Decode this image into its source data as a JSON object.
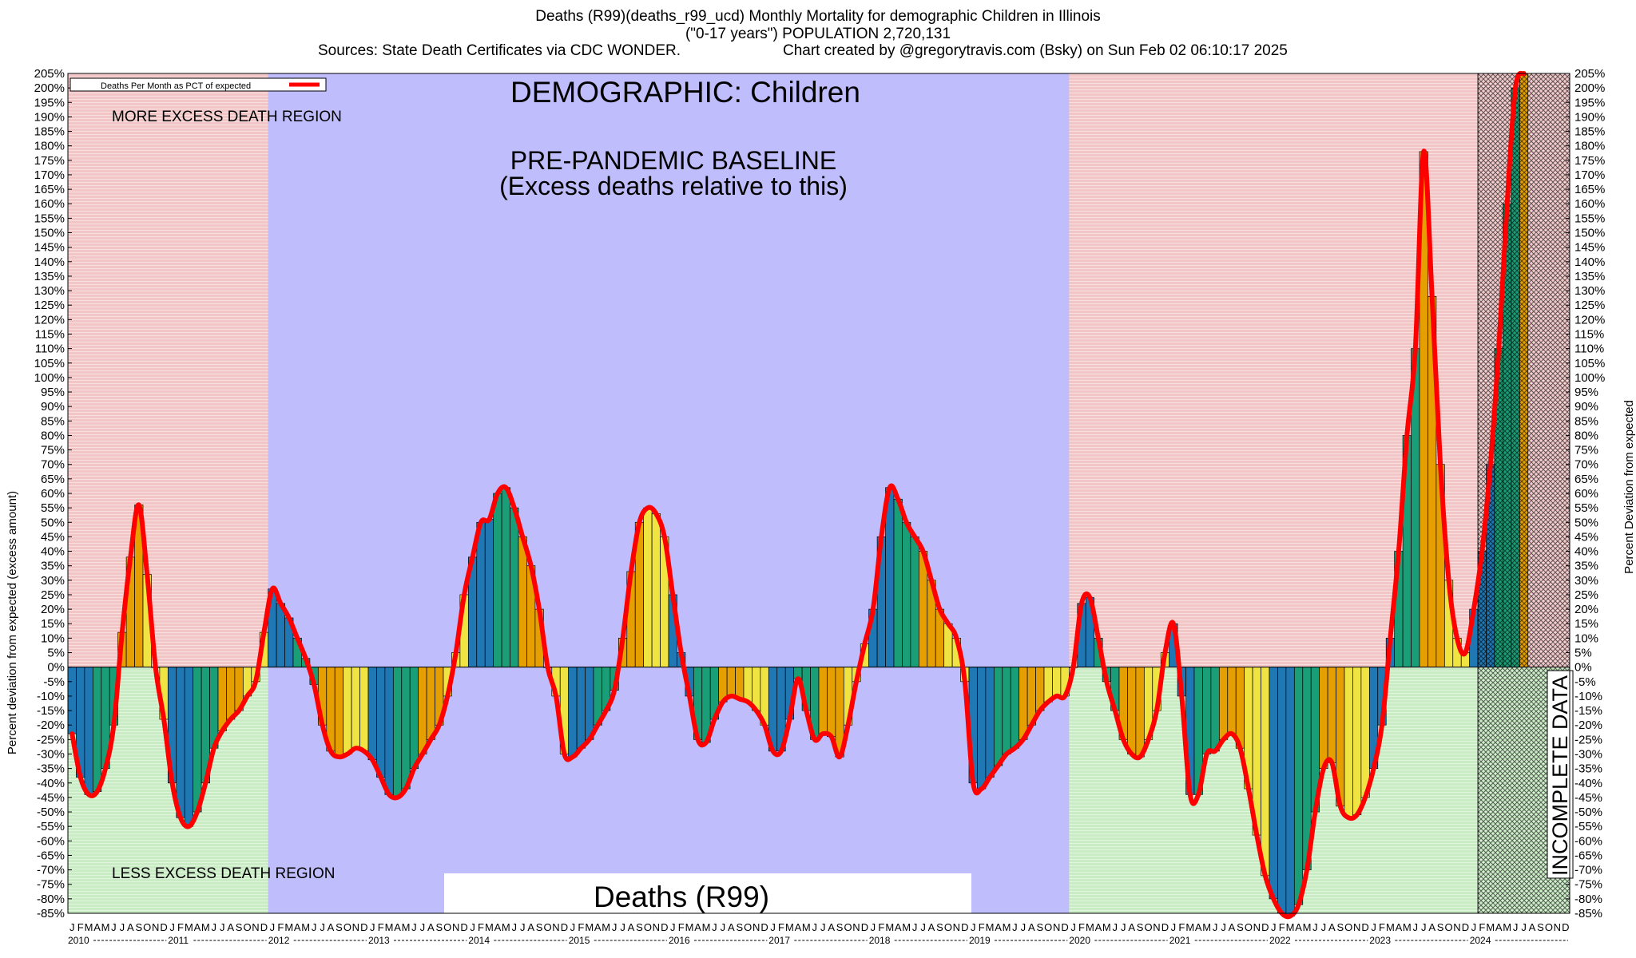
{
  "header": {
    "line1": "Deaths (R99)(deaths_r99_ucd) Monthly Mortality for demographic Children in Illinois",
    "line2": "(\"0-17 years\") POPULATION 2,720,131",
    "line3_left": "Sources: State Death Certificates via CDC WONDER.",
    "line3_right": "Chart created by @gregorytravis.com (Bsky) on Sun Feb 02 06:10:17 2025"
  },
  "colors": {
    "excess_region": "#f2c6c6",
    "less_region": "#c9ecc4",
    "baseline_region": "#bfbdfc",
    "curve": "#ff0000",
    "bar_cycle": [
      "#1f77b4",
      "#1a9e77",
      "#e69f00",
      "#f0e442"
    ]
  },
  "chart_data": {
    "type": "bar",
    "ylabel_left": "Percent deviation from expected (excess amount)",
    "ylabel_right": "Percent Deviation from expected",
    "ylim": [
      -85,
      205
    ],
    "ytick_step": 5,
    "legend": {
      "label": "Deaths Per Month as PCT of expected",
      "position": "top-left"
    },
    "annotations": {
      "demographic": "DEMOGRAPHIC: Children",
      "baseline_line1": "PRE-PANDEMIC BASELINE",
      "baseline_line2": "(Excess deaths relative to this)",
      "more_region": "MORE EXCESS DEATH REGION",
      "less_region": "LESS EXCESS DEATH REGION",
      "cause_box": "Deaths (R99)",
      "incomplete": "INCOMPLETE DATA"
    },
    "month_letters": [
      "J",
      "F",
      "M",
      "A",
      "M",
      "J",
      "J",
      "A",
      "S",
      "O",
      "N",
      "D"
    ],
    "years": [
      "2010",
      "2011",
      "2012",
      "2013",
      "2014",
      "2015",
      "2016",
      "2017",
      "2018",
      "2019",
      "2020",
      "2021",
      "2022",
      "2023",
      "2024"
    ],
    "baseline_years": [
      "2012",
      "2013",
      "2014",
      "2015",
      "2016",
      "2017",
      "2018",
      "2019"
    ],
    "incomplete_from": "2024-Feb",
    "values": [
      -23,
      -38,
      -44,
      -43,
      -35,
      -20,
      12,
      38,
      56,
      32,
      0,
      -18,
      -40,
      -52,
      -55,
      -50,
      -40,
      -28,
      -22,
      -18,
      -15,
      -10,
      -5,
      12,
      27,
      22,
      17,
      10,
      3,
      -6,
      -20,
      -29,
      -31,
      -30,
      -28,
      -29,
      -32,
      -38,
      -44,
      -45,
      -42,
      -35,
      -30,
      -25,
      -20,
      -10,
      5,
      25,
      38,
      50,
      51,
      60,
      62,
      55,
      45,
      35,
      20,
      0,
      -10,
      -30,
      -31,
      -28,
      -25,
      -20,
      -15,
      -8,
      10,
      33,
      50,
      55,
      53,
      45,
      25,
      5,
      -10,
      -25,
      -26,
      -18,
      -12,
      -10,
      -11,
      -12,
      -15,
      -20,
      -29,
      -29,
      -18,
      -4,
      -15,
      -25,
      -23,
      -24,
      -31,
      -20,
      -5,
      8,
      20,
      45,
      62,
      58,
      50,
      45,
      40,
      30,
      20,
      15,
      10,
      -5,
      -40,
      -42,
      -38,
      -34,
      -30,
      -28,
      -25,
      -20,
      -15,
      -12,
      -10,
      -10,
      0,
      22,
      24,
      10,
      -5,
      -15,
      -25,
      -30,
      -31,
      -25,
      -15,
      5,
      15,
      -10,
      -44,
      -44,
      -30,
      -29,
      -25,
      -23,
      -28,
      -42,
      -58,
      -72,
      -80,
      -85,
      -86,
      -82,
      -70,
      -50,
      -35,
      -33,
      -48,
      -52,
      -51,
      -45,
      -35,
      -20,
      10,
      40,
      80,
      110,
      178,
      128,
      70,
      30,
      10,
      5,
      20,
      40,
      70,
      110,
      160,
      200,
      205
    ]
  }
}
